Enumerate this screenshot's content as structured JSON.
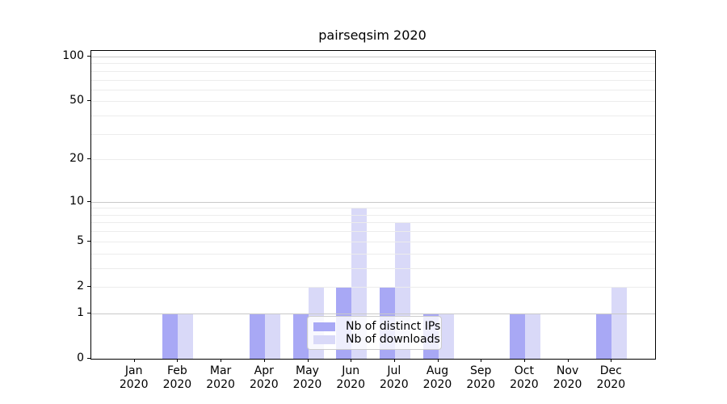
{
  "chart_data": {
    "type": "bar",
    "title": "pairseqsim 2020",
    "year": "2020",
    "categories": [
      "Jan",
      "Feb",
      "Mar",
      "Apr",
      "May",
      "Jun",
      "Jul",
      "Aug",
      "Sep",
      "Oct",
      "Nov",
      "Dec"
    ],
    "series": [
      {
        "name": "Nb of distinct IPs",
        "color": "#a8a8f5",
        "values": [
          0,
          1,
          0,
          1,
          1,
          2,
          2,
          1,
          0,
          1,
          0,
          1
        ]
      },
      {
        "name": "Nb of downloads",
        "color": "#d9d9f8",
        "values": [
          0,
          1,
          0,
          1,
          2,
          9,
          7,
          1,
          0,
          1,
          0,
          2
        ]
      }
    ],
    "xlabel": "",
    "ylabel": "",
    "y_scale": "log10(1+x)",
    "ylim": [
      0,
      109
    ],
    "y_ticks": [
      0,
      1,
      2,
      5,
      10,
      20,
      50,
      100
    ],
    "y_gridlines": {
      "major": [
        1,
        10,
        100
      ],
      "minor": [
        2,
        3,
        4,
        5,
        6,
        7,
        8,
        9,
        20,
        30,
        40,
        50,
        60,
        70,
        80,
        90
      ]
    },
    "grid": "horizontal",
    "legend_position": "lower-center"
  }
}
